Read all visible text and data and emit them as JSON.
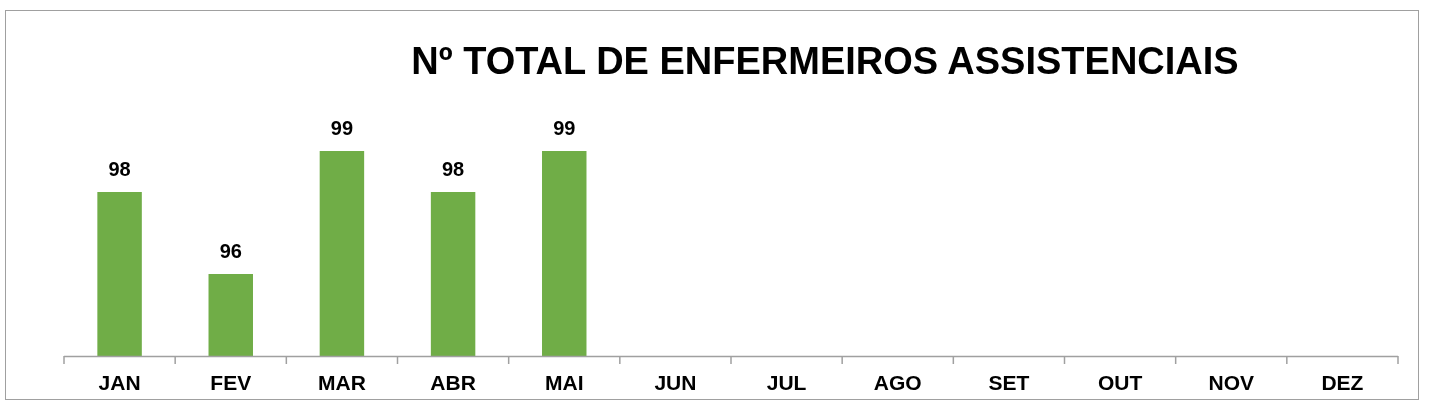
{
  "chart_data": {
    "type": "bar",
    "title": "Nº TOTAL DE ENFERMEIROS ASSISTENCIAIS",
    "categories": [
      "JAN",
      "FEV",
      "MAR",
      "ABR",
      "MAI",
      "JUN",
      "JUL",
      "AGO",
      "SET",
      "OUT",
      "NOV",
      "DEZ"
    ],
    "values": [
      98,
      96,
      99,
      98,
      99,
      null,
      null,
      null,
      null,
      null,
      null,
      null
    ],
    "color": "#70ad47",
    "ylim": [
      94,
      99
    ],
    "data_labels": true,
    "tick_labels": "x"
  }
}
